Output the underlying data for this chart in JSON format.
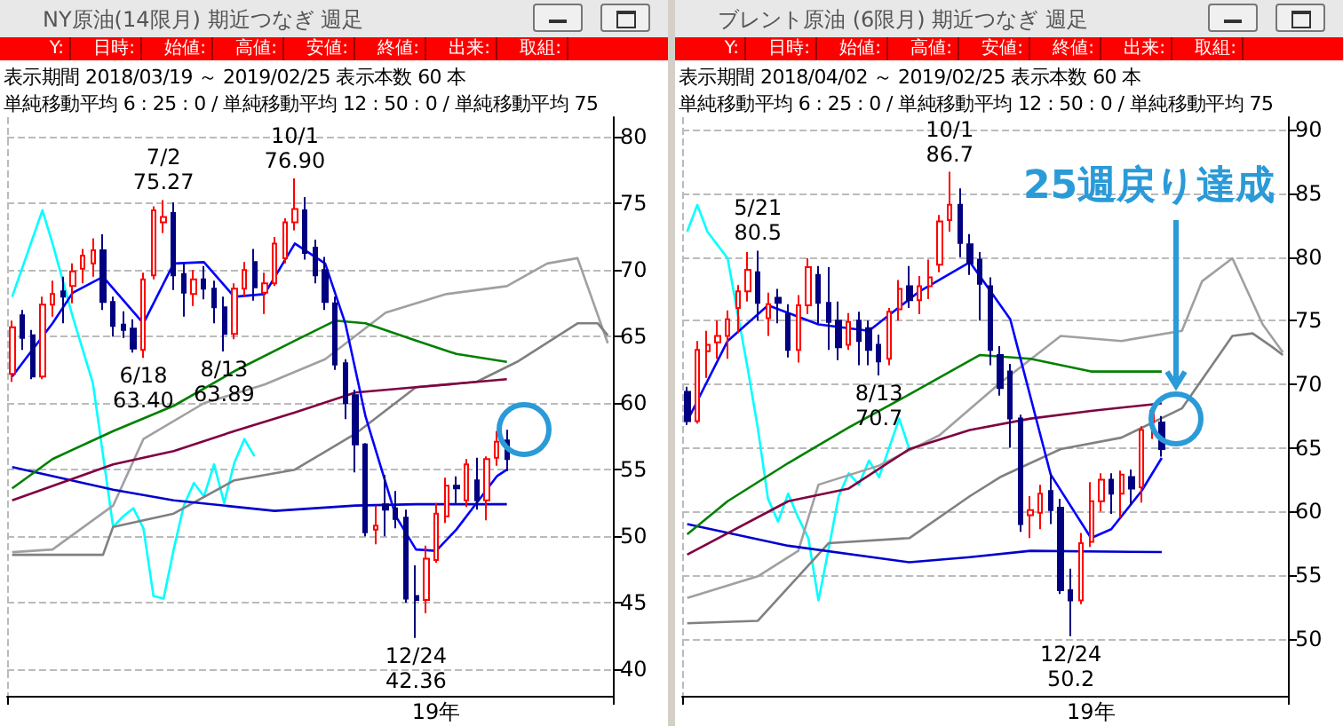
{
  "chart_data": [
    {
      "type": "candlestick",
      "title": "NY原油(14限月) 期近つなぎ 週足",
      "subtitle": "表示期間 2018/03/19 ～ 2019/02/25 表示本数 60 本",
      "annotations": [
        "単純移動平均 6 : 25 : 0 / 単純移動平均 12 : 50 : 0 / 単純移動平均 75",
        "Y:",
        "日時:",
        "始値:",
        "高値:",
        "安値:",
        "終値:",
        "出来:",
        "取組:",
        {
          "text": "7/2\n75.27",
          "y": 75.27
        },
        {
          "text": "10/1\n76.90",
          "y": 76.9
        },
        {
          "text": "6/18\n63.40",
          "y": 63.4
        },
        {
          "text": "8/13\n63.89",
          "y": 63.89
        },
        {
          "text": "12/24\n42.36",
          "y": 42.36
        }
      ],
      "categories": [
        null,
        null,
        null,
        null,
        null,
        null,
        null,
        null,
        null,
        null,
        null,
        null,
        null,
        null,
        null,
        null,
        null,
        null,
        null,
        null,
        null,
        null,
        null,
        null,
        null,
        null,
        null,
        null,
        null,
        null,
        null,
        null,
        null,
        null,
        null,
        null,
        null,
        null,
        null,
        null,
        null,
        null,
        "19年",
        null,
        null,
        null,
        null,
        null,
        null,
        null,
        null,
        null,
        null,
        null,
        null,
        null,
        null,
        null,
        null,
        null
      ],
      "ylim": [
        38,
        81.5
      ],
      "yticks": [
        40,
        45,
        50,
        55,
        60,
        65,
        70,
        75,
        80
      ],
      "grid": true,
      "series": [
        {
          "type": "line",
          "color": "#00ffff",
          "values": [
            68.0,
            null,
            null,
            74.5,
            72.0,
            null,
            66.5,
            null,
            61.5,
            null,
            50.7,
            51.5,
            52.1,
            50.6,
            45.5,
            45.3,
            49.0,
            52.3,
            54.0,
            53.0,
            55.4,
            52.5,
            55.5,
            57.3,
            56.0,
            null,
            null,
            null,
            null,
            null,
            null,
            null,
            null,
            null,
            null,
            null,
            null,
            null,
            null,
            null,
            null,
            null,
            null,
            null,
            null,
            null,
            null,
            null,
            null,
            null,
            null,
            null,
            null,
            null,
            null,
            null,
            null,
            null,
            null,
            null
          ]
        },
        {
          "type": "line",
          "color": "#a0a0a0",
          "values": [
            48.8,
            null,
            null,
            null,
            49.0,
            null,
            null,
            null,
            null,
            null,
            52.3,
            null,
            null,
            57.3,
            null,
            null,
            null,
            null,
            null,
            60.0,
            null,
            null,
            null,
            null,
            null,
            61.4,
            null,
            null,
            null,
            null,
            null,
            63.3,
            null,
            null,
            null,
            null,
            null,
            66.8,
            null,
            null,
            null,
            null,
            null,
            68.2,
            null,
            null,
            null,
            null,
            null,
            68.8,
            null,
            null,
            null,
            70.5,
            null,
            null,
            70.9,
            null,
            null,
            64.5
          ]
        },
        {
          "type": "line",
          "color": "#808080",
          "values": [
            48.6,
            null,
            null,
            null,
            null,
            null,
            null,
            null,
            null,
            48.6,
            50.7,
            null,
            null,
            null,
            null,
            null,
            51.7,
            null,
            null,
            null,
            null,
            null,
            54.2,
            null,
            null,
            null,
            null,
            null,
            55.0,
            null,
            null,
            null,
            null,
            null,
            57.7,
            null,
            null,
            null,
            null,
            null,
            61.2,
            null,
            null,
            null,
            null,
            null,
            61.6,
            null,
            null,
            null,
            63.1,
            null,
            null,
            null,
            null,
            null,
            66.0,
            null,
            66.0,
            65.1
          ]
        },
        {
          "type": "line",
          "color": "#0000cd",
          "values": [
            55.2,
            null,
            null,
            null,
            null,
            null,
            null,
            null,
            null,
            null,
            53.5,
            null,
            null,
            null,
            null,
            null,
            52.7,
            null,
            null,
            null,
            null,
            null,
            null,
            null,
            null,
            null,
            51.9,
            null,
            null,
            null,
            null,
            null,
            null,
            null,
            52.3,
            null,
            null,
            null,
            null,
            null,
            52.4,
            null,
            null,
            null,
            null,
            null,
            null,
            null,
            null,
            52.4,
            null,
            null,
            null,
            null,
            null,
            null,
            null,
            null,
            null,
            null
          ]
        },
        {
          "type": "line",
          "color": "#800040",
          "values": [
            52.7,
            null,
            null,
            null,
            null,
            null,
            null,
            null,
            null,
            null,
            55.4,
            null,
            null,
            null,
            null,
            null,
            56.4,
            null,
            null,
            null,
            null,
            null,
            57.9,
            null,
            null,
            null,
            null,
            null,
            59.3,
            null,
            null,
            null,
            null,
            null,
            60.8,
            null,
            null,
            null,
            null,
            null,
            61.2,
            null,
            null,
            null,
            null,
            null,
            null,
            null,
            null,
            61.8,
            null,
            null,
            null,
            null,
            null,
            null,
            null,
            null,
            null,
            null
          ]
        },
        {
          "type": "line",
          "color": "#008000",
          "values": [
            53.6,
            null,
            null,
            null,
            55.8,
            null,
            null,
            null,
            null,
            null,
            57.9,
            null,
            null,
            null,
            null,
            null,
            59.8,
            null,
            null,
            null,
            null,
            null,
            62.4,
            null,
            null,
            null,
            null,
            null,
            64.7,
            null,
            null,
            null,
            66.2,
            null,
            null,
            66.0,
            null,
            null,
            null,
            null,
            64.7,
            null,
            null,
            null,
            63.7,
            null,
            null,
            null,
            null,
            63.1,
            null,
            null,
            null,
            null,
            null,
            null,
            null,
            null,
            null,
            null
          ]
        },
        {
          "type": "line",
          "color": "#0000ff",
          "values": [
            62.0,
            null,
            null,
            null,
            66.0,
            null,
            68.3,
            null,
            null,
            69.5,
            null,
            null,
            null,
            66.0,
            null,
            null,
            70.5,
            null,
            null,
            70.6,
            null,
            null,
            68.0,
            null,
            null,
            68.2,
            null,
            null,
            72.0,
            null,
            null,
            70.5,
            null,
            66.0,
            null,
            59.0,
            null,
            null,
            51.5,
            null,
            49.0,
            null,
            48.9,
            null,
            50.5,
            null,
            52.5,
            null,
            54.5,
            55.0,
            null,
            null,
            null,
            null,
            null,
            null,
            null,
            null,
            null,
            null
          ]
        },
        {
          "type": "candlestick",
          "colors": [
            "#ff0000",
            "#000080",
            "#000080",
            "#ff0000",
            "#ff0000",
            "#000080",
            "#ff0000",
            "#ff0000",
            "#ff0000",
            "#000080",
            "#000080",
            "#000080",
            "#000080",
            "#ff0000",
            "#ff0000",
            "#ff0000",
            "#000080",
            "#000080",
            "#ff0000",
            "#000080",
            "#000080",
            "#000080",
            "#ff0000",
            "#ff0000",
            "#000080",
            "#ff0000",
            "#ff0000",
            "#ff0000",
            "#ff0000",
            "#000080",
            "#000080",
            "#000080",
            "#000080",
            "#000080",
            "#000080",
            "#000080",
            "#ff0000",
            "#000080",
            "#000080",
            "#000080",
            "#000080",
            "#ff0000",
            "#ff0000",
            "#ff0000",
            "#000080",
            "#ff0000",
            "#000080",
            "#ff0000",
            "#ff0000",
            "#000080",
            null,
            null,
            null,
            null,
            null,
            null,
            null,
            null,
            null,
            null
          ],
          "ohlc": [
            [
              62.2,
              66.2,
              61.6,
              65.7
            ],
            [
              66.6,
              67.0,
              64.0,
              64.9
            ],
            [
              65.1,
              65.5,
              61.8,
              62.0
            ],
            [
              62.0,
              68.0,
              61.8,
              67.4
            ],
            [
              67.4,
              69.2,
              66.5,
              68.2
            ],
            [
              68.4,
              69.5,
              66.0,
              68.0
            ],
            [
              68.8,
              70.5,
              67.5,
              69.9
            ],
            [
              70.1,
              71.6,
              69.0,
              71.1
            ],
            [
              70.5,
              72.4,
              69.5,
              71.5
            ],
            [
              71.5,
              72.7,
              67.0,
              67.6
            ],
            [
              67.6,
              68.0,
              65.0,
              65.8
            ],
            [
              65.9,
              66.9,
              64.9,
              65.5
            ],
            [
              65.6,
              66.3,
              63.8,
              64.1
            ],
            [
              64.0,
              69.8,
              63.4,
              69.3
            ],
            [
              69.6,
              74.8,
              69.3,
              74.5
            ],
            [
              73.6,
              75.27,
              72.8,
              74.0
            ],
            [
              74.3,
              75.1,
              68.5,
              69.6
            ],
            [
              69.7,
              70.5,
              66.5,
              68.3
            ],
            [
              68.2,
              70.0,
              67.3,
              69.3
            ],
            [
              69.3,
              70.3,
              67.8,
              68.6
            ],
            [
              68.6,
              69.2,
              66.0,
              67.2
            ],
            [
              67.2,
              68.0,
              63.89,
              65.2
            ],
            [
              65.2,
              69.0,
              64.8,
              68.6
            ],
            [
              68.6,
              70.6,
              68.0,
              70.0
            ],
            [
              70.6,
              71.6,
              67.7,
              68.7
            ],
            [
              68.3,
              69.8,
              66.7,
              69.0
            ],
            [
              69.0,
              72.5,
              68.8,
              72.0
            ],
            [
              70.9,
              73.9,
              70.5,
              73.6
            ],
            [
              73.6,
              76.9,
              73.0,
              74.6
            ],
            [
              74.5,
              75.5,
              70.8,
              71.3
            ],
            [
              71.7,
              72.3,
              69.0,
              69.6
            ],
            [
              70.0,
              71.0,
              67.0,
              67.6
            ],
            [
              67.5,
              68.0,
              62.5,
              62.9
            ],
            [
              63.0,
              63.3,
              58.8,
              60.0
            ],
            [
              60.6,
              61.0,
              54.8,
              56.9
            ],
            [
              56.9,
              57.0,
              50.0,
              50.3
            ],
            [
              50.5,
              52.3,
              49.4,
              50.8
            ],
            [
              52.4,
              54.6,
              50.0,
              52.0
            ],
            [
              52.1,
              53.4,
              50.6,
              51.3
            ],
            [
              51.4,
              52.0,
              45.0,
              45.3
            ],
            [
              45.5,
              47.8,
              42.36,
              45.2
            ],
            [
              45.2,
              49.3,
              44.2,
              48.3
            ],
            [
              48.2,
              52.5,
              48.0,
              51.7
            ],
            [
              51.5,
              54.4,
              51.0,
              53.8
            ],
            [
              53.8,
              54.5,
              52.5,
              53.6
            ],
            [
              52.7,
              55.8,
              52.2,
              55.4
            ],
            [
              54.2,
              55.9,
              52.0,
              52.7
            ],
            [
              52.7,
              56.0,
              51.2,
              55.8
            ],
            [
              55.9,
              57.9,
              55.3,
              57.1
            ],
            [
              57.2,
              58.0,
              54.9,
              55.8
            ],
            null,
            null,
            null,
            null,
            null,
            null,
            null,
            null,
            null,
            null
          ]
        }
      ]
    },
    {
      "type": "candlestick",
      "title": "ブレント原油 (6限月) 期近つなぎ 週足",
      "subtitle": "表示期間 2018/04/02 ～ 2019/02/25 表示本数 60 本",
      "annotations": [
        "単純移動平均 6 : 25 : 0 / 単純移動平均 12 : 50 : 0 / 単純移動平均 75",
        "Y:",
        "日時:",
        "始値:",
        "高値:",
        "安値:",
        "終値:",
        "出来:",
        "取組:",
        "25週戻り達成",
        {
          "text": "5/21\n80.5",
          "y": 80.5
        },
        {
          "text": "10/1\n86.7",
          "y": 86.7
        },
        {
          "text": "8/13\n70.7",
          "y": 70.7
        },
        {
          "text": "12/24\n50.2",
          "y": 50.2
        }
      ],
      "categories": [
        null,
        null,
        null,
        null,
        null,
        null,
        null,
        null,
        null,
        null,
        null,
        null,
        null,
        null,
        null,
        null,
        null,
        null,
        null,
        null,
        null,
        null,
        null,
        null,
        null,
        null,
        null,
        null,
        null,
        null,
        null,
        null,
        null,
        null,
        null,
        null,
        null,
        null,
        null,
        null,
        "19年",
        null,
        null,
        null,
        null,
        null,
        null,
        null,
        null,
        null,
        null,
        null,
        null,
        null,
        null,
        null,
        null,
        null,
        null,
        null
      ],
      "ylim": [
        45.5,
        91
      ],
      "yticks": [
        50,
        55,
        60,
        65,
        70,
        75,
        80,
        85,
        90
      ],
      "grid": true,
      "series": [
        {
          "type": "line",
          "color": "#00ffff",
          "values": [
            82.0,
            84.1,
            82.0,
            null,
            79.9,
            null,
            71.2,
            66.5,
            61.0,
            59.2,
            61.4,
            59.5,
            57.9,
            53.0,
            57.0,
            61.2,
            63.0,
            62.1,
            64.0,
            62.7,
            65.0,
            67.3,
            64.9,
            null,
            null,
            null,
            null,
            null,
            null,
            null,
            null,
            null,
            null,
            null,
            null,
            null,
            null,
            null,
            null,
            null,
            null,
            null,
            null,
            null,
            null,
            null,
            null,
            null,
            null,
            null,
            null,
            null,
            null,
            null,
            null,
            null,
            null,
            null,
            null,
            null
          ]
        },
        {
          "type": "line",
          "color": "#a0a0a0",
          "values": [
            53.2,
            null,
            null,
            null,
            null,
            null,
            null,
            54.9,
            null,
            null,
            null,
            56.9,
            null,
            62.1,
            null,
            null,
            null,
            null,
            null,
            63.6,
            null,
            null,
            null,
            null,
            null,
            66.0,
            null,
            null,
            null,
            null,
            null,
            70.1,
            null,
            null,
            null,
            null,
            null,
            73.8,
            null,
            null,
            null,
            null,
            null,
            73.4,
            null,
            null,
            null,
            null,
            null,
            74.2,
            null,
            78.1,
            null,
            null,
            79.9,
            null,
            null,
            74.7,
            null,
            72.5
          ]
        },
        {
          "type": "line",
          "color": "#808080",
          "values": [
            51.2,
            null,
            null,
            null,
            null,
            null,
            null,
            51.4,
            null,
            null,
            null,
            null,
            null,
            null,
            57.5,
            null,
            null,
            null,
            null,
            null,
            null,
            null,
            57.9,
            null,
            null,
            null,
            null,
            null,
            61.2,
            null,
            null,
            62.7,
            null,
            null,
            null,
            null,
            null,
            64.9,
            null,
            null,
            null,
            null,
            null,
            65.8,
            null,
            null,
            null,
            null,
            null,
            68.1,
            null,
            null,
            null,
            null,
            73.8,
            null,
            74.0,
            null,
            72.9,
            72.3
          ]
        },
        {
          "type": "line",
          "color": "#0000cd",
          "values": [
            59.0,
            null,
            null,
            null,
            null,
            null,
            null,
            null,
            null,
            null,
            57.3,
            null,
            null,
            null,
            null,
            null,
            null,
            null,
            null,
            null,
            null,
            null,
            56.0,
            null,
            null,
            null,
            null,
            null,
            56.4,
            null,
            null,
            null,
            null,
            null,
            56.9,
            null,
            null,
            null,
            null,
            null,
            null,
            null,
            null,
            null,
            null,
            null,
            null,
            56.8,
            null,
            null,
            null,
            null,
            null,
            null,
            null,
            null,
            null,
            null,
            null,
            null
          ]
        },
        {
          "type": "line",
          "color": "#800040",
          "values": [
            56.6,
            null,
            null,
            null,
            null,
            null,
            null,
            null,
            null,
            null,
            60.8,
            null,
            null,
            null,
            null,
            null,
            61.8,
            null,
            null,
            null,
            null,
            null,
            64.9,
            null,
            null,
            null,
            null,
            null,
            66.4,
            null,
            null,
            null,
            null,
            null,
            67.3,
            null,
            null,
            null,
            null,
            null,
            67.9,
            null,
            null,
            null,
            null,
            null,
            null,
            68.5,
            null,
            null,
            null,
            null,
            null,
            null,
            null,
            null,
            null,
            null,
            null,
            null
          ]
        },
        {
          "type": "line",
          "color": "#008000",
          "values": [
            58.2,
            null,
            null,
            null,
            60.8,
            null,
            null,
            null,
            null,
            null,
            63.8,
            null,
            null,
            null,
            null,
            null,
            66.6,
            null,
            null,
            null,
            null,
            null,
            69.2,
            null,
            null,
            null,
            null,
            null,
            null,
            72.3,
            null,
            null,
            null,
            null,
            72.0,
            null,
            null,
            null,
            null,
            null,
            71.0,
            null,
            null,
            null,
            null,
            null,
            null,
            71.0,
            null,
            null,
            null,
            null,
            null,
            null,
            null,
            null,
            null,
            null,
            null,
            null
          ]
        },
        {
          "type": "line",
          "color": "#0000ff",
          "values": [
            67.1,
            null,
            null,
            null,
            73.4,
            null,
            null,
            null,
            76.2,
            null,
            null,
            null,
            null,
            74.7,
            null,
            null,
            null,
            null,
            74.2,
            null,
            null,
            null,
            null,
            77.3,
            null,
            null,
            null,
            null,
            79.6,
            null,
            null,
            null,
            75.1,
            null,
            null,
            null,
            62.9,
            null,
            null,
            null,
            57.9,
            null,
            58.6,
            null,
            null,
            61.6,
            null,
            64.2,
            null,
            null,
            null,
            null,
            null,
            null,
            null,
            null,
            null,
            null,
            null,
            null
          ]
        },
        {
          "type": "candlestick",
          "colors": [
            "#000080",
            "#ff0000",
            "#ff0000",
            "#ff0000",
            "#ff0000",
            "#ff0000",
            "#ff0000",
            "#000080",
            "#ff0000",
            "#000080",
            "#000080",
            "#ff0000",
            "#ff0000",
            "#000080",
            "#000080",
            "#000080",
            "#ff0000",
            "#000080",
            "#000080",
            "#000080",
            "#ff0000",
            "#ff0000",
            "#000080",
            "#ff0000",
            "#ff0000",
            "#ff0000",
            "#ff0000",
            "#000080",
            "#000080",
            "#000080",
            "#000080",
            "#000080",
            "#000080",
            "#000080",
            "#ff0000",
            "#ff0000",
            "#000080",
            "#000080",
            "#000080",
            "#ff0000",
            "#ff0000",
            "#ff0000",
            "#000080",
            "#ff0000",
            "#000080",
            "#ff0000",
            "#ff0000",
            "#000080",
            null,
            null,
            null,
            null,
            null,
            null,
            null,
            null,
            null,
            null,
            null,
            null
          ],
          "ohlc": [
            [
              69.4,
              69.8,
              66.8,
              67.1
            ],
            [
              67.1,
              73.4,
              66.9,
              72.7
            ],
            [
              72.6,
              74.2,
              70.5,
              73.1
            ],
            [
              73.3,
              75.0,
              72.0,
              73.8
            ],
            [
              73.8,
              75.8,
              72.0,
              75.1
            ],
            [
              76.0,
              77.8,
              74.0,
              77.3
            ],
            [
              77.3,
              80.4,
              76.5,
              79.0
            ],
            [
              78.8,
              80.5,
              75.0,
              76.4
            ],
            [
              75.2,
              77.2,
              73.8,
              76.3
            ],
            [
              76.8,
              77.5,
              74.8,
              76.4
            ],
            [
              75.5,
              76.3,
              72.1,
              72.7
            ],
            [
              72.7,
              77.0,
              71.7,
              76.2
            ],
            [
              76.2,
              79.9,
              75.5,
              79.2
            ],
            [
              78.6,
              79.3,
              74.8,
              76.4
            ],
            [
              76.4,
              79.2,
              72.7,
              74.9
            ],
            [
              75.0,
              76.5,
              71.9,
              72.9
            ],
            [
              73.1,
              75.6,
              72.7,
              74.9
            ],
            [
              75.0,
              75.7,
              71.5,
              73.4
            ],
            [
              74.4,
              75.0,
              71.5,
              72.7
            ],
            [
              73.1,
              73.9,
              70.7,
              71.8
            ],
            [
              72.0,
              76.0,
              71.5,
              75.7
            ],
            [
              75.9,
              78.2,
              75.0,
              77.5
            ],
            [
              77.7,
              79.3,
              76.0,
              76.6
            ],
            [
              76.6,
              78.5,
              75.5,
              77.7
            ],
            [
              77.7,
              79.8,
              76.7,
              78.4
            ],
            [
              79.4,
              83.3,
              78.8,
              82.8
            ],
            [
              82.9,
              86.7,
              82.0,
              84.1
            ],
            [
              84.1,
              85.4,
              80.0,
              81.1
            ],
            [
              81.0,
              81.8,
              78.6,
              79.5
            ],
            [
              79.8,
              80.4,
              75.0,
              77.9
            ],
            [
              77.7,
              78.4,
              71.5,
              72.7
            ],
            [
              72.3,
              73.0,
              69.1,
              69.7
            ],
            [
              71.0,
              71.6,
              65.0,
              67.3
            ],
            [
              67.3,
              67.6,
              58.4,
              59.0
            ],
            [
              59.7,
              61.2,
              57.9,
              60.1
            ],
            [
              59.9,
              62.1,
              58.6,
              61.4
            ],
            [
              61.6,
              63.0,
              59.0,
              60.1
            ],
            [
              60.3,
              61.0,
              53.5,
              53.8
            ],
            [
              53.8,
              55.5,
              50.2,
              53.0
            ],
            [
              53.0,
              58.3,
              52.7,
              57.5
            ],
            [
              57.6,
              62.3,
              57.2,
              60.8
            ],
            [
              60.8,
              63.0,
              60.0,
              62.5
            ],
            [
              62.5,
              63.0,
              59.8,
              61.4
            ],
            [
              61.4,
              63.2,
              59.5,
              62.9
            ],
            [
              62.7,
              63.3,
              60.5,
              61.8
            ],
            [
              61.9,
              66.7,
              60.7,
              66.4
            ],
            [
              67.0,
              68.0,
              65.7,
              67.9
            ],
            [
              67.0,
              67.5,
              64.3,
              64.9
            ],
            null,
            null,
            null,
            null,
            null,
            null,
            null,
            null,
            null,
            null,
            null,
            null
          ]
        }
      ]
    }
  ]
}
